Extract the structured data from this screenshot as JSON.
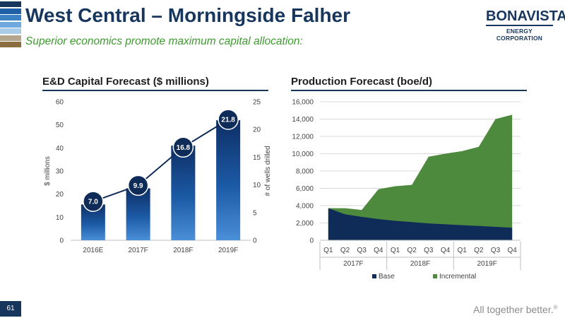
{
  "header": {
    "title": "West Central – Morningside Falher",
    "subtitle": "Superior economics promote maximum capital allocation:",
    "stripe_colors": [
      "#17365d",
      "#1f5fa8",
      "#3b82c4",
      "#6fa8dc",
      "#a9cce8",
      "#b4a78d",
      "#8c6d3f"
    ]
  },
  "logo": {
    "name": "BONAVISTA",
    "sub": "ENERGY CORPORATION"
  },
  "footer": {
    "page_number": "61",
    "tagline": "All together better.",
    "trademark": "®"
  },
  "colors": {
    "navy": "#17365d",
    "bar_blue": "#1c5aa6",
    "green": "#4e8a3e",
    "base": "#0f2b57"
  },
  "chart_data": [
    {
      "type": "bar",
      "title": "E&D Capital Forecast ($ millions)",
      "categories": [
        "2016E",
        "2017F",
        "2018F",
        "2019F"
      ],
      "values": [
        15.5,
        22.5,
        41,
        52
      ],
      "ylabel": "$ millions",
      "ylim": [
        0,
        60
      ],
      "yticks": [
        "0",
        "10",
        "20",
        "30",
        "40",
        "50",
        "60"
      ],
      "secondary": {
        "type": "line",
        "ylabel": "# of wells drilled",
        "ylim": [
          0,
          25
        ],
        "yticks": [
          "0",
          "5",
          "10",
          "15",
          "20",
          "25"
        ],
        "values": [
          7.0,
          9.9,
          16.8,
          21.8
        ],
        "labels": [
          "7.0",
          "9.9",
          "16.8",
          "21.8"
        ]
      }
    },
    {
      "type": "area",
      "title": "Production Forecast (boe/d)",
      "categories": [
        "Q1",
        "Q2",
        "Q3",
        "Q4",
        "Q1",
        "Q2",
        "Q3",
        "Q4",
        "Q1",
        "Q2",
        "Q3",
        "Q4"
      ],
      "year_groups": [
        {
          "label": "2017F",
          "span": 4
        },
        {
          "label": "2018F",
          "span": 4
        },
        {
          "label": "2019F",
          "span": 4
        }
      ],
      "ylim": [
        0,
        16000
      ],
      "yticks": [
        "0",
        "2,000",
        "4,000",
        "6,000",
        "8,000",
        "10,000",
        "12,000",
        "14,000",
        "16,000"
      ],
      "series": [
        {
          "name": "Base",
          "values": [
            3700,
            3000,
            2700,
            2450,
            2250,
            2100,
            1950,
            1850,
            1750,
            1650,
            1550,
            1450
          ]
        },
        {
          "name": "Incremental",
          "values": [
            0,
            700,
            800,
            3450,
            4000,
            4300,
            7700,
            8150,
            8550,
            9150,
            12450,
            13050
          ]
        }
      ],
      "legend_position": "bottom"
    }
  ]
}
